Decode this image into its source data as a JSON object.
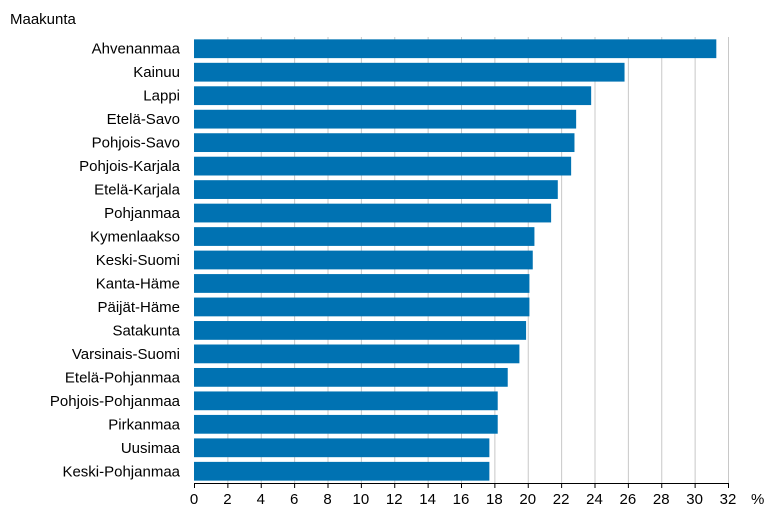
{
  "chart_data": {
    "type": "bar",
    "orientation": "horizontal",
    "category_axis_title": "Maakunta",
    "value_unit": "%",
    "categories": [
      "Ahvenanmaa",
      "Kainuu",
      "Lappi",
      "Etelä-Savo",
      "Pohjois-Savo",
      "Pohjois-Karjala",
      "Etelä-Karjala",
      "Pohjanmaa",
      "Kymenlaakso",
      "Keski-Suomi",
      "Kanta-Häme",
      "Päijät-Häme",
      "Satakunta",
      "Varsinais-Suomi",
      "Etelä-Pohjanmaa",
      "Pohjois-Pohjanmaa",
      "Pirkanmaa",
      "Uusimaa",
      "Keski-Pohjanmaa"
    ],
    "values": [
      31.3,
      25.8,
      23.8,
      22.9,
      22.8,
      22.6,
      21.8,
      21.4,
      20.4,
      20.3,
      20.1,
      20.1,
      19.9,
      19.5,
      18.8,
      18.2,
      18.2,
      17.7,
      17.7
    ],
    "xlim": [
      0,
      32
    ],
    "xticks": [
      0,
      2,
      4,
      6,
      8,
      10,
      12,
      14,
      16,
      18,
      20,
      22,
      24,
      26,
      28,
      30,
      32
    ],
    "grid": "vertical",
    "bar_color": "#0072b2"
  }
}
